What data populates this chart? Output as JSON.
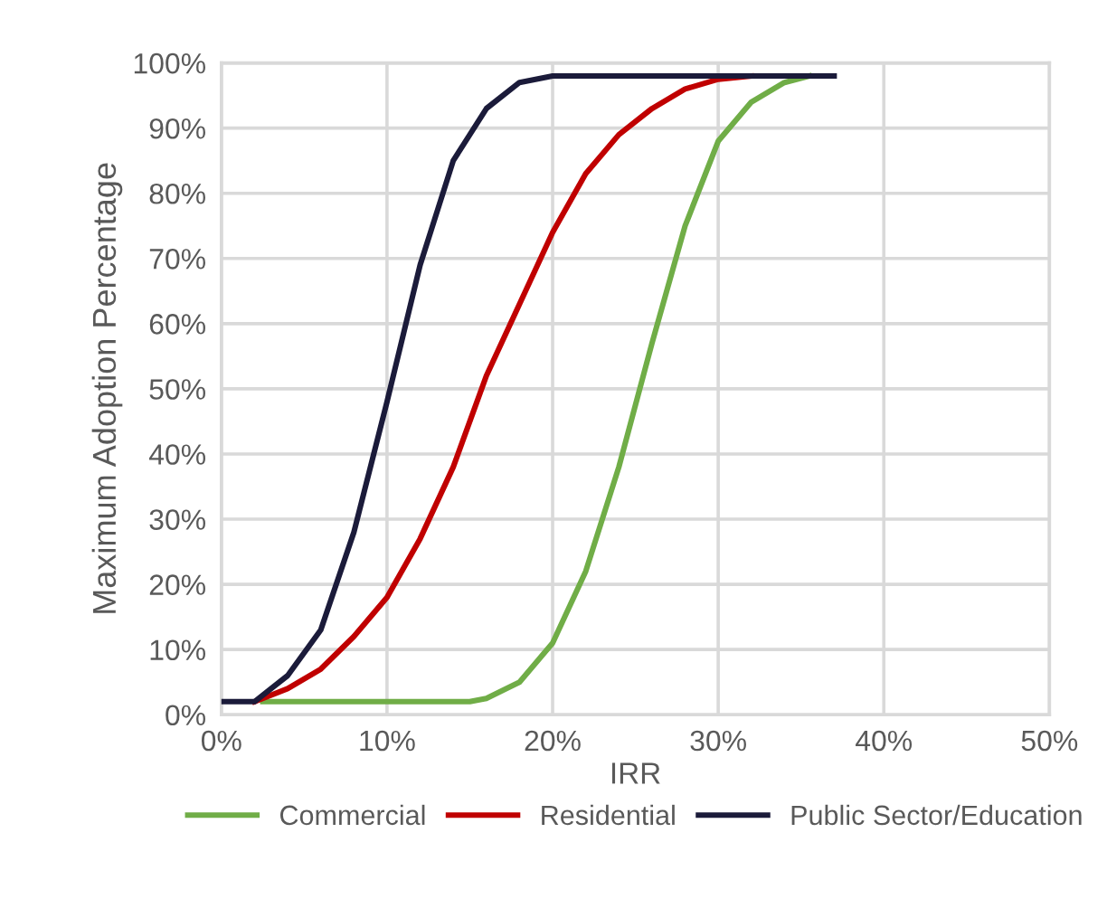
{
  "chart_data": {
    "type": "line",
    "xlabel": "IRR",
    "ylabel": "Maximum Adoption Percentage",
    "xlim": [
      0,
      50
    ],
    "ylim": [
      0,
      100
    ],
    "xticks": [
      {
        "value": 0,
        "label": "0%"
      },
      {
        "value": 10,
        "label": "10%"
      },
      {
        "value": 20,
        "label": "20%"
      },
      {
        "value": 30,
        "label": "30%"
      },
      {
        "value": 40,
        "label": "40%"
      },
      {
        "value": 50,
        "label": "50%"
      }
    ],
    "yticks": [
      {
        "value": 0,
        "label": "0%"
      },
      {
        "value": 10,
        "label": "10%"
      },
      {
        "value": 20,
        "label": "20%"
      },
      {
        "value": 30,
        "label": "30%"
      },
      {
        "value": 40,
        "label": "40%"
      },
      {
        "value": 50,
        "label": "50%"
      },
      {
        "value": 60,
        "label": "60%"
      },
      {
        "value": 70,
        "label": "70%"
      },
      {
        "value": 80,
        "label": "80%"
      },
      {
        "value": 90,
        "label": "90%"
      },
      {
        "value": 100,
        "label": "100%"
      }
    ],
    "grid": true,
    "legend": "bottom",
    "marker": "none",
    "line_style": "solid",
    "series": [
      {
        "name": "Commercial",
        "color": "#70ad47",
        "x": [
          2.5,
          15,
          16,
          18,
          20,
          22,
          24,
          26,
          28,
          30,
          32,
          34,
          35.5
        ],
        "values": [
          2,
          2,
          2.5,
          5,
          11,
          22,
          38,
          57,
          75,
          88,
          94,
          97,
          98
        ]
      },
      {
        "name": "Residential",
        "color": "#c00000",
        "x": [
          2,
          4,
          6,
          8,
          10,
          12,
          14,
          16,
          18,
          20,
          22,
          24,
          26,
          28,
          30,
          32
        ],
        "values": [
          2,
          4,
          7,
          12,
          18,
          27,
          38,
          52,
          63,
          74,
          83,
          89,
          93,
          96,
          97.5,
          98
        ]
      },
      {
        "name": "Public Sector/Education",
        "color": "#1b1b3a",
        "x": [
          0,
          2,
          4,
          6,
          8,
          10,
          12,
          14,
          16,
          18,
          20,
          37
        ],
        "values": [
          2,
          2,
          6,
          13,
          28,
          48,
          69,
          85,
          93,
          97,
          98,
          98
        ]
      }
    ]
  }
}
